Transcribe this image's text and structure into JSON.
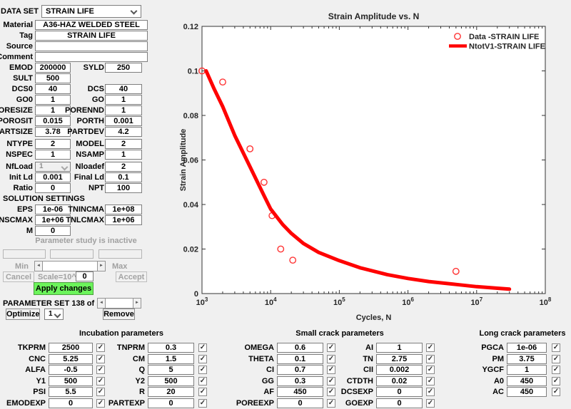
{
  "window": {
    "bg": "#f0f0f0"
  },
  "colors": {
    "accent_green": "#6cf45b",
    "line_red": "#ff0000",
    "marker_red": "#ff3333"
  },
  "icons": {
    "scroll_left": "◄",
    "scroll_right": "►",
    "check": "✓"
  },
  "dataset": {
    "label": "DATA SET",
    "value": "STRAIN LIFE",
    "info_rows": [
      {
        "label": "Material",
        "value": "A36-HAZ WELDED STEEL"
      },
      {
        "label": "Tag",
        "value": "STRAIN LIFE"
      },
      {
        "label": "Source",
        "value": ""
      },
      {
        "label": "Comment",
        "value": ""
      }
    ],
    "pair_rows": [
      {
        "l1": "EMOD",
        "v1": "200000",
        "l2": "SYLD",
        "v2": "250"
      },
      {
        "l1": "SULT",
        "v1": "500"
      },
      {
        "l1": "DCS0",
        "v1": "40",
        "l2": "DCS",
        "v2": "40"
      },
      {
        "l1": "GO0",
        "v1": "1",
        "l2": "GO",
        "v2": "1"
      },
      {
        "l1": "PORESIZE",
        "v1": "1",
        "l2": "PORENND",
        "v2": "1"
      },
      {
        "l1": "POROSIT",
        "v1": "0.015",
        "l2": "PORTH",
        "v2": "0.001"
      },
      {
        "l1": "PARTSIZE",
        "v1": "3.78",
        "l2": "PARTDEV",
        "v2": "4.2"
      },
      {
        "l1": "NTYPE",
        "v1": "2",
        "l2": "MODEL",
        "v2": "2",
        "gap_before": true
      },
      {
        "l1": "NSPEC",
        "v1": "1",
        "l2": "NSAMP",
        "v2": "1"
      },
      {
        "l1": "NfLoad",
        "v1": "1",
        "combo1": true,
        "l2": "Nloadef",
        "v2": "2",
        "gap_before": true
      },
      {
        "l1": "Init Ld",
        "v1": "0.001",
        "l2": "Final Ld",
        "v2": "0.1"
      },
      {
        "l1": "Ratio",
        "v1": "0",
        "l2": "NPT",
        "v2": "100"
      }
    ]
  },
  "solution": {
    "title": "SOLUTION SETTINGS",
    "rows": [
      {
        "l1": "EPS",
        "v1": "1e-06",
        "l2": "TNINCMA",
        "v2": "1e+08"
      },
      {
        "l1": "TNSCMAX",
        "v1": "1e+06",
        "l2": "TNLCMAX",
        "v2": "1e+06"
      },
      {
        "l1": "M",
        "v1": "0"
      }
    ]
  },
  "param_study": {
    "status": "Parameter study is inactive",
    "min_label": "Min",
    "max_label": "Max",
    "cancel_label": "Cancel",
    "scale_label": "Scale=10^",
    "scale_value": "0",
    "accept_label": "Accept",
    "apply_label": "Apply changes",
    "set_label": "PARAMETER SET 138 of 138",
    "optimize_label": "Optimize",
    "optimize_value": "1",
    "remove_label": "Remove"
  },
  "chart_data": {
    "type": "scatter+line",
    "title": "Strain Amplitude vs. N",
    "xlabel": "Cycles, N",
    "ylabel": "Strain Amplitude",
    "x_scale": "log",
    "xlim_exp": [
      3,
      8
    ],
    "ylim": [
      0,
      0.12
    ],
    "y_ticks": [
      "0",
      "0.02",
      "0.04",
      "0.06",
      "0.08",
      "0.1",
      "0.12"
    ],
    "legend_position": "top-right",
    "series": [
      {
        "name": "Data -STRAIN LIFE",
        "type": "scatter",
        "x": [
          1000,
          2000,
          5000,
          8000,
          10500,
          14000,
          21000,
          5000000
        ],
        "y": [
          0.1,
          0.095,
          0.065,
          0.05,
          0.035,
          0.02,
          0.015,
          0.01
        ]
      },
      {
        "name": "NtotV1-STRAIN LIFE",
        "type": "line",
        "x": [
          1150,
          1500,
          2000,
          3000,
          5000,
          8000,
          10000,
          15000,
          20000,
          30000,
          50000,
          100000,
          200000,
          500000,
          1000000,
          2000000,
          5000000,
          10000000,
          20000000,
          30000000
        ],
        "y": [
          0.1,
          0.092,
          0.084,
          0.071,
          0.057,
          0.044,
          0.038,
          0.031,
          0.027,
          0.0225,
          0.0185,
          0.0148,
          0.0116,
          0.0085,
          0.0068,
          0.0054,
          0.0041,
          0.0031,
          0.0024,
          0.002
        ]
      }
    ]
  },
  "bottom_panels": [
    {
      "title": "Incubation parameters",
      "rows": [
        [
          {
            "label": "TKPRM",
            "value": "2500",
            "checked": true
          },
          {
            "label": "TNPRM",
            "value": "0.3",
            "checked": true
          }
        ],
        [
          {
            "label": "CNC",
            "value": "5.25",
            "checked": true
          },
          {
            "label": "CM",
            "value": "1.5",
            "checked": true
          }
        ],
        [
          {
            "label": "ALFA",
            "value": "-0.5",
            "checked": true
          },
          {
            "label": "Q",
            "value": "5",
            "checked": true
          }
        ],
        [
          {
            "label": "Y1",
            "value": "500",
            "checked": true
          },
          {
            "label": "Y2",
            "value": "500",
            "checked": true
          }
        ],
        [
          {
            "label": "PSI",
            "value": "5.5",
            "checked": true
          },
          {
            "label": "R",
            "value": "20",
            "checked": true
          }
        ],
        [
          {
            "label": "EMODEXP",
            "value": "0",
            "checked": true
          },
          {
            "label": "PARTEXP",
            "value": "0",
            "checked": true
          }
        ]
      ]
    },
    {
      "title": "Small crack parameters",
      "rows": [
        [
          {
            "label": "OMEGA",
            "value": "0.6",
            "checked": true
          },
          {
            "label": "AI",
            "value": "1",
            "checked": true
          }
        ],
        [
          {
            "label": "THETA",
            "value": "0.1",
            "checked": true
          },
          {
            "label": "TN",
            "value": "2.75",
            "checked": true
          }
        ],
        [
          {
            "label": "CI",
            "value": "0.7",
            "checked": true
          },
          {
            "label": "CII",
            "value": "0.002",
            "checked": true
          }
        ],
        [
          {
            "label": "GG",
            "value": "0.3",
            "checked": true
          },
          {
            "label": "CTDTH",
            "value": "0.02",
            "checked": true
          }
        ],
        [
          {
            "label": "AF",
            "value": "450",
            "checked": true
          },
          {
            "label": "DCSEXP",
            "value": "0",
            "checked": true
          }
        ],
        [
          {
            "label": "POREEXP",
            "value": "0",
            "checked": true
          },
          {
            "label": "GOEXP",
            "value": "0",
            "checked": true
          }
        ]
      ]
    },
    {
      "title": "Long crack parameters",
      "rows": [
        [
          {
            "label": "PGCA",
            "value": "1e-06",
            "checked": true
          }
        ],
        [
          {
            "label": "PM",
            "value": "3.75",
            "checked": true
          }
        ],
        [
          {
            "label": "YGCF",
            "value": "1",
            "checked": true
          }
        ],
        [
          {
            "label": "A0",
            "value": "450",
            "checked": true
          }
        ],
        [
          {
            "label": "AC",
            "value": "450",
            "checked": true
          }
        ]
      ]
    }
  ]
}
